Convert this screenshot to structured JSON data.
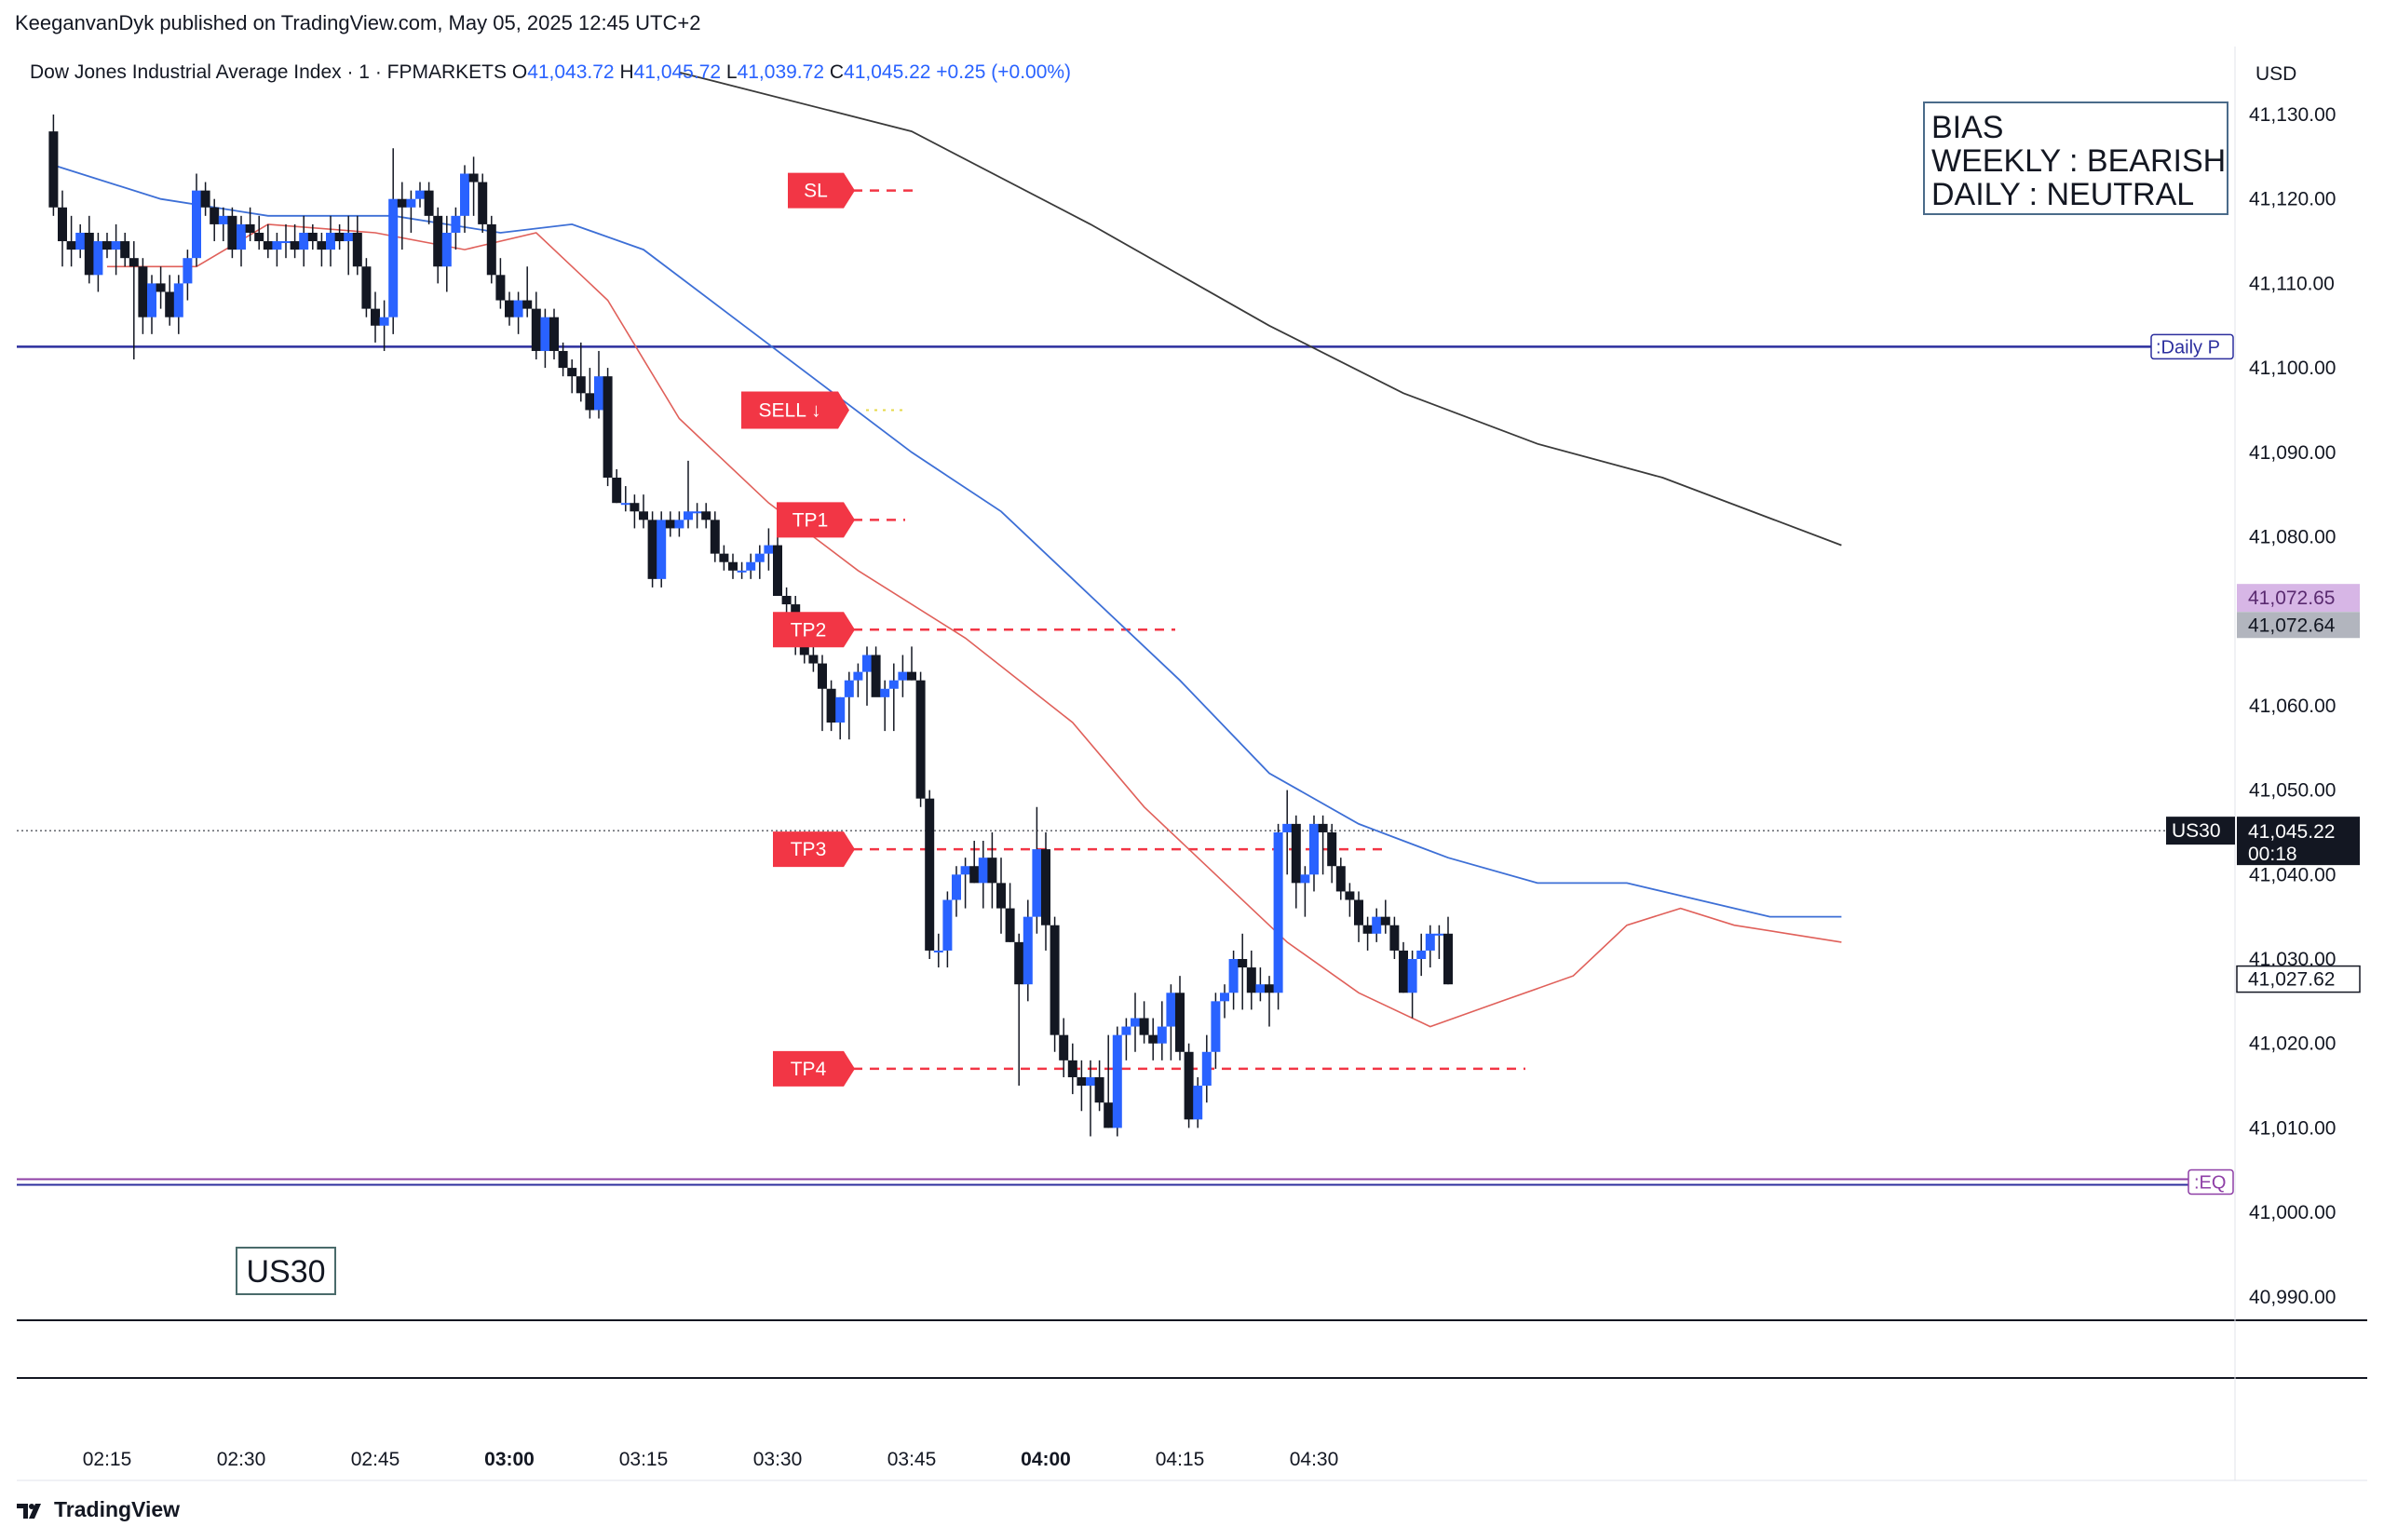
{
  "header": {
    "published_by": "KeeganvanDyk published on TradingView.com, May 05, 2025 12:45 UTC+2"
  },
  "symbol_bar": {
    "title": "Dow Jones Industrial Average Index · 1 · FPMARKETS",
    "o_label": "O",
    "o_value": "41,043.72",
    "h_label": "H",
    "h_value": "41,045.72",
    "l_label": "L",
    "l_value": "41,039.72",
    "c_label": "C",
    "c_value": "41,045.22",
    "change": "+0.25 (+0.00%)"
  },
  "currency": "USD",
  "bias_box": {
    "line1": "BIAS",
    "line2": "WEEKLY : BEARISH",
    "line3": "DAILY : NEUTRAL"
  },
  "watermark_label": "US30",
  "branding": "TradingView",
  "colors": {
    "up": "#2962ff",
    "down": "#131722",
    "ema_fast": "#e0605a",
    "ema_slow": "#3d6fd6",
    "ema_long": "#3a3a3a",
    "level_red": "#f23645",
    "daily_pivot": "#2c2f9e",
    "eq": "#8e3fa6"
  },
  "chart_data": {
    "type": "candlestick",
    "title": "Dow Jones Industrial Average Index · 1 · FPMARKETS",
    "ylim": [
      40985,
      41135
    ],
    "y_ticks": [
      41130,
      41120,
      41110,
      41100,
      41090,
      41080,
      41070,
      41060,
      41050,
      41040,
      41030,
      41020,
      41010,
      41000,
      40990
    ],
    "y_tick_labels": [
      "41,130.00",
      "41,120.00",
      "41,110.00",
      "41,100.00",
      "41,090.00",
      "41,080.00",
      "41,070.00",
      "41,060.00",
      "41,050.00",
      "41,040.00",
      "41,030.00",
      "41,020.00",
      "41,010.00",
      "41,000.00",
      "40,990.00"
    ],
    "x_ticks": [
      {
        "minute": 0,
        "label": "02:15",
        "bold": false
      },
      {
        "minute": 15,
        "label": "02:30",
        "bold": false
      },
      {
        "minute": 30,
        "label": "02:45",
        "bold": false
      },
      {
        "minute": 45,
        "label": "03:00",
        "bold": true
      },
      {
        "minute": 60,
        "label": "03:15",
        "bold": false
      },
      {
        "minute": 75,
        "label": "03:30",
        "bold": false
      },
      {
        "minute": 90,
        "label": "03:45",
        "bold": false
      },
      {
        "minute": 105,
        "label": "04:00",
        "bold": true
      },
      {
        "minute": 120,
        "label": "04:15",
        "bold": false
      },
      {
        "minute": 135,
        "label": "04:30",
        "bold": false
      }
    ],
    "minute_offset": -6,
    "candles": [
      [
        41128,
        41130,
        41118,
        41119
      ],
      [
        41119,
        41121,
        41112,
        41115
      ],
      [
        41115,
        41118,
        41112,
        41114
      ],
      [
        41114,
        41117,
        41113,
        41116
      ],
      [
        41116,
        41118,
        41110,
        41111
      ],
      [
        41111,
        41116,
        41109,
        41115
      ],
      [
        41115,
        41116,
        41113,
        41114
      ],
      [
        41114,
        41117,
        41111,
        41115
      ],
      [
        41115,
        41116,
        41112,
        41113
      ],
      [
        41113,
        41115,
        41101,
        41112
      ],
      [
        41112,
        41113,
        41104,
        41106
      ],
      [
        41106,
        41111,
        41104,
        41110
      ],
      [
        41110,
        41112,
        41107,
        41109
      ],
      [
        41109,
        41111,
        41105,
        41106
      ],
      [
        41106,
        41111,
        41104,
        41110
      ],
      [
        41110,
        41114,
        41108,
        41113
      ],
      [
        41113,
        41123,
        41112,
        41121
      ],
      [
        41121,
        41122,
        41118,
        41119
      ],
      [
        41119,
        41120,
        41115,
        41117
      ],
      [
        41117,
        41119,
        41115,
        41118
      ],
      [
        41118,
        41119,
        41113,
        41114
      ],
      [
        41114,
        41118,
        41112,
        41117
      ],
      [
        41117,
        41119,
        41115,
        41116
      ],
      [
        41116,
        41118,
        41114,
        41115
      ],
      [
        41115,
        41117,
        41113,
        41114
      ],
      [
        41114,
        41116,
        41112,
        41115
      ],
      [
        41115,
        41117,
        41113,
        41115
      ],
      [
        41115,
        41117,
        41113,
        41114
      ],
      [
        41114,
        41118,
        41112,
        41116
      ],
      [
        41116,
        41117,
        41114,
        41115
      ],
      [
        41115,
        41116,
        41112,
        41114
      ],
      [
        41114,
        41118,
        41112,
        41116
      ],
      [
        41116,
        41117,
        41114,
        41115
      ],
      [
        41115,
        41118,
        41111,
        41116
      ],
      [
        41116,
        41118,
        41111,
        41112
      ],
      [
        41112,
        41113,
        41106,
        41107
      ],
      [
        41107,
        41109,
        41103,
        41105
      ],
      [
        41105,
        41108,
        41102,
        41106
      ],
      [
        41106,
        41126,
        41104,
        41120
      ],
      [
        41120,
        41122,
        41114,
        41119
      ],
      [
        41119,
        41121,
        41116,
        41120
      ],
      [
        41120,
        41122,
        41119,
        41121
      ],
      [
        41121,
        41122,
        41117,
        41118
      ],
      [
        41118,
        41119,
        41110,
        41112
      ],
      [
        41112,
        41118,
        41109,
        41116
      ],
      [
        41116,
        41119,
        41114,
        41118
      ],
      [
        41118,
        41124,
        41116,
        41123
      ],
      [
        41123,
        41125,
        41118,
        41122
      ],
      [
        41122,
        41123,
        41116,
        41117
      ],
      [
        41117,
        41118,
        41110,
        41111
      ],
      [
        41111,
        41113,
        41107,
        41108
      ],
      [
        41108,
        41109,
        41105,
        41106
      ],
      [
        41106,
        41109,
        41104,
        41108
      ],
      [
        41108,
        41112,
        41106,
        41107
      ],
      [
        41107,
        41109,
        41101,
        41102
      ],
      [
        41102,
        41107,
        41100,
        41106
      ],
      [
        41106,
        41107,
        41101,
        41102
      ],
      [
        41102,
        41103,
        41099,
        41100
      ],
      [
        41100,
        41101,
        41097,
        41099
      ],
      [
        41099,
        41103,
        41096,
        41097
      ],
      [
        41097,
        41100,
        41094,
        41095
      ],
      [
        41095,
        41102,
        41094,
        41099
      ],
      [
        41099,
        41100,
        41086,
        41087
      ],
      [
        41087,
        41088,
        41084,
        41084
      ],
      [
        41084,
        41086,
        41083,
        41084
      ],
      [
        41084,
        41085,
        41081,
        41083
      ],
      [
        41083,
        41085,
        41081,
        41082
      ],
      [
        41082,
        41083,
        41074,
        41075
      ],
      [
        41075,
        41083,
        41074,
        41082
      ],
      [
        41082,
        41083,
        41080,
        41081
      ],
      [
        41081,
        41083,
        41080,
        41082
      ],
      [
        41082,
        41089,
        41081,
        41083
      ],
      [
        41083,
        41084,
        41081,
        41083
      ],
      [
        41083,
        41084,
        41081,
        41082
      ],
      [
        41082,
        41083,
        41077,
        41078
      ],
      [
        41078,
        41079,
        41076,
        41077
      ],
      [
        41077,
        41078,
        41075,
        41076
      ],
      [
        41076,
        41077,
        41075,
        41076
      ],
      [
        41076,
        41078,
        41075,
        41077
      ],
      [
        41077,
        41079,
        41075,
        41078
      ],
      [
        41078,
        41081,
        41076,
        41079
      ],
      [
        41079,
        41080,
        41073,
        41073
      ],
      [
        41073,
        41074,
        41070,
        41072
      ],
      [
        41072,
        41073,
        41066,
        41067
      ],
      [
        41067,
        41071,
        41065,
        41066
      ],
      [
        41066,
        41067,
        41064,
        41065
      ],
      [
        41065,
        41066,
        41057,
        41062
      ],
      [
        41062,
        41063,
        41057,
        41058
      ],
      [
        41058,
        41061,
        41056,
        41061
      ],
      [
        41061,
        41064,
        41056,
        41063
      ],
      [
        41063,
        41065,
        41061,
        41064
      ],
      [
        41064,
        41067,
        41060,
        41066
      ],
      [
        41066,
        41067,
        41062,
        41061
      ],
      [
        41061,
        41063,
        41057,
        41062
      ],
      [
        41062,
        41065,
        41057,
        41063
      ],
      [
        41063,
        41066,
        41061,
        41064
      ],
      [
        41064,
        41067,
        41063,
        41063
      ],
      [
        41063,
        41064,
        41048,
        41049
      ],
      [
        41049,
        41050,
        41030,
        41031
      ],
      [
        41031,
        41033,
        41029,
        41031
      ],
      [
        41031,
        41038,
        41029,
        41037
      ],
      [
        41037,
        41041,
        41035,
        41040
      ],
      [
        41040,
        41042,
        41036,
        41041
      ],
      [
        41041,
        41044,
        41039,
        41039
      ],
      [
        41039,
        41044,
        41036,
        41042
      ],
      [
        41042,
        41045,
        41036,
        41039
      ],
      [
        41039,
        41042,
        41033,
        41036
      ],
      [
        41036,
        41039,
        41032,
        41032
      ],
      [
        41032,
        41033,
        41015,
        41027
      ],
      [
        41027,
        41037,
        41025,
        41035
      ],
      [
        41035,
        41048,
        41033,
        41043
      ],
      [
        41043,
        41045,
        41031,
        41034
      ],
      [
        41034,
        41035,
        41019,
        41021
      ],
      [
        41021,
        41023,
        41016,
        41018
      ],
      [
        41018,
        41020,
        41014,
        41016
      ],
      [
        41016,
        41018,
        41012,
        41015
      ],
      [
        41015,
        41018,
        41009,
        41016
      ],
      [
        41016,
        41018,
        41012,
        41013
      ],
      [
        41013,
        41021,
        41010,
        41010
      ],
      [
        41010,
        41022,
        41009,
        41021
      ],
      [
        41021,
        41023,
        41018,
        41022
      ],
      [
        41022,
        41026,
        41019,
        41023
      ],
      [
        41023,
        41025,
        41020,
        41021
      ],
      [
        41021,
        41023,
        41018,
        41020
      ],
      [
        41020,
        41025,
        41018,
        41022
      ],
      [
        41022,
        41027,
        41018,
        41026
      ],
      [
        41026,
        41028,
        41018,
        41019
      ],
      [
        41019,
        41020,
        41010,
        41011
      ],
      [
        41011,
        41016,
        41010,
        41015
      ],
      [
        41015,
        41021,
        41013,
        41019
      ],
      [
        41019,
        41026,
        41017,
        41025
      ],
      [
        41025,
        41027,
        41023,
        41026
      ],
      [
        41026,
        41031,
        41024,
        41030
      ],
      [
        41030,
        41033,
        41024,
        41029
      ],
      [
        41029,
        41031,
        41024,
        41026
      ],
      [
        41026,
        41029,
        41025,
        41027
      ],
      [
        41027,
        41028,
        41022,
        41026
      ],
      [
        41026,
        41046,
        41024,
        41045
      ],
      [
        41045,
        41050,
        41040,
        41046
      ],
      [
        41046,
        41047,
        41036,
        41039
      ],
      [
        41039,
        41041,
        41035,
        41040
      ],
      [
        41040,
        41047,
        41038,
        41046
      ],
      [
        41046,
        41047,
        41040,
        41045
      ],
      [
        41045,
        41046,
        41039,
        41041
      ],
      [
        41041,
        41042,
        41037,
        41038
      ],
      [
        41038,
        41039,
        41035,
        41037
      ],
      [
        41037,
        41038,
        41032,
        41034
      ],
      [
        41034,
        41035,
        41031,
        41033
      ],
      [
        41033,
        41036,
        41032,
        41035
      ],
      [
        41035,
        41037,
        41033,
        41034
      ],
      [
        41034,
        41035,
        41030,
        41031
      ],
      [
        41031,
        41032,
        41026,
        41026
      ],
      [
        41026,
        41031,
        41023,
        41030
      ],
      [
        41030,
        41033,
        41028,
        41031
      ],
      [
        41031,
        41034,
        41029,
        41033
      ],
      [
        41033,
        41034,
        41030,
        41033
      ],
      [
        41033,
        41035,
        41027,
        41027
      ]
    ],
    "ema_fast": [
      [
        0,
        41112
      ],
      [
        10,
        41112
      ],
      [
        18,
        41117
      ],
      [
        30,
        41116
      ],
      [
        40,
        41114
      ],
      [
        48,
        41116
      ],
      [
        56,
        41108
      ],
      [
        64,
        41094
      ],
      [
        74,
        41084
      ],
      [
        84,
        41076
      ],
      [
        96,
        41068
      ],
      [
        108,
        41058
      ],
      [
        116,
        41048
      ],
      [
        124,
        41040
      ],
      [
        132,
        41032
      ],
      [
        140,
        41026
      ],
      [
        148,
        41022
      ],
      [
        156,
        41025
      ],
      [
        164,
        41028
      ],
      [
        170,
        41034
      ],
      [
        176,
        41036
      ],
      [
        182,
        41034
      ],
      [
        188,
        41033
      ],
      [
        194,
        41032
      ]
    ],
    "ema_slow": [
      [
        -6,
        41124
      ],
      [
        6,
        41120
      ],
      [
        18,
        41118
      ],
      [
        32,
        41118
      ],
      [
        44,
        41116
      ],
      [
        52,
        41117
      ],
      [
        60,
        41114
      ],
      [
        70,
        41106
      ],
      [
        80,
        41098
      ],
      [
        90,
        41090
      ],
      [
        100,
        41083
      ],
      [
        110,
        41073
      ],
      [
        120,
        41063
      ],
      [
        130,
        41052
      ],
      [
        140,
        41046
      ],
      [
        150,
        41042
      ],
      [
        160,
        41039
      ],
      [
        170,
        41039
      ],
      [
        178,
        41037
      ],
      [
        186,
        41035
      ],
      [
        194,
        41035
      ]
    ],
    "ema_long": [
      [
        64,
        41135
      ],
      [
        90,
        41128
      ],
      [
        110,
        41117
      ],
      [
        130,
        41105
      ],
      [
        145,
        41097
      ],
      [
        160,
        41091
      ],
      [
        174,
        41087
      ],
      [
        194,
        41079
      ]
    ],
    "levels": {
      "sl": {
        "label": "SL",
        "price": 41121
      },
      "entry": {
        "label": "SELL ↓",
        "price": 41095
      },
      "tp1": {
        "label": "TP1",
        "price": 41082
      },
      "tp2": {
        "label": "TP2",
        "price": 41069
      },
      "tp3": {
        "label": "TP3",
        "price": 41043
      },
      "tp4": {
        "label": "TP4",
        "price": 41017
      },
      "daily_pivot": {
        "label": ":Daily P",
        "price": 41102.5
      },
      "eq": {
        "label": ":EQ",
        "price": 41003.6
      },
      "current": {
        "price": 41045.2
      }
    },
    "price_tags": [
      {
        "label": "US30",
        "value": "41,045.22",
        "sub": "00:18",
        "price": 41045.2,
        "style": "current"
      },
      {
        "value": "41,072.65",
        "price": 41072.65,
        "style": "purple"
      },
      {
        "value": "41,072.64",
        "price": 41072.64,
        "style": "gray"
      },
      {
        "value": "41,027.62",
        "price": 41027.62,
        "style": "outline"
      }
    ]
  }
}
